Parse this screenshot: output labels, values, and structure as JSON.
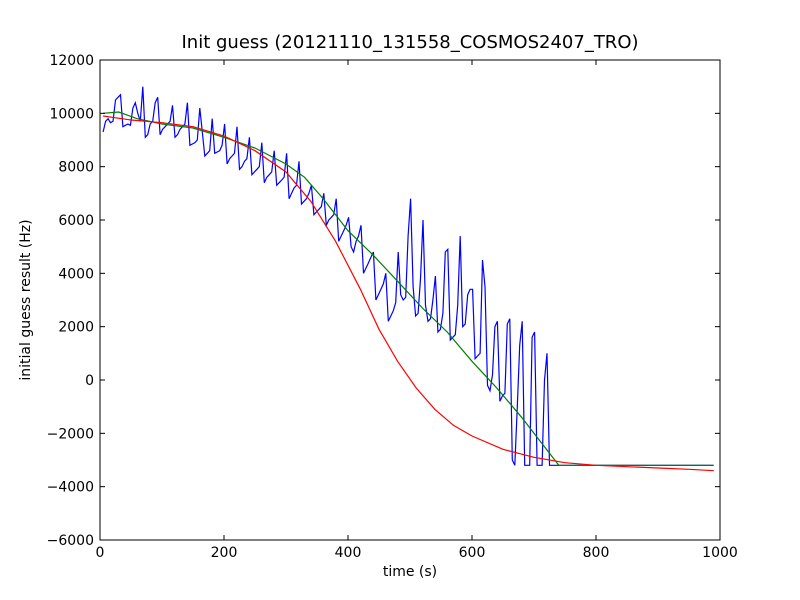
{
  "chart_data": {
    "type": "line",
    "title": "Init guess (20121110_131558_COSMOS2407_TRO)",
    "xlabel": "time (s)",
    "ylabel": "initial guess result (Hz)",
    "xlim": [
      0,
      1000
    ],
    "ylim": [
      -6000,
      12000
    ],
    "xticks": [
      0,
      200,
      400,
      600,
      800,
      1000
    ],
    "yticks": [
      -6000,
      -4000,
      -2000,
      0,
      2000,
      4000,
      6000,
      8000,
      10000,
      12000
    ],
    "grid": false,
    "legend": "none",
    "series": [
      {
        "color": "#0000ff",
        "x": [
          5,
          9,
          13,
          17,
          21,
          25,
          29,
          33,
          37,
          41,
          45,
          49,
          53,
          57,
          61,
          65,
          69,
          73,
          77,
          81,
          85,
          89,
          93,
          97,
          101,
          105,
          109,
          113,
          117,
          121,
          125,
          129,
          133,
          137,
          141,
          145,
          149,
          153,
          157,
          161,
          165,
          169,
          173,
          177,
          181,
          185,
          189,
          193,
          197,
          201,
          205,
          209,
          213,
          217,
          221,
          225,
          229,
          233,
          237,
          241,
          245,
          249,
          253,
          257,
          261,
          265,
          269,
          273,
          277,
          281,
          285,
          289,
          293,
          297,
          301,
          305,
          309,
          313,
          317,
          321,
          325,
          329,
          333,
          337,
          341,
          345,
          349,
          353,
          357,
          361,
          365,
          369,
          373,
          377,
          381,
          385,
          389,
          393,
          397,
          401,
          405,
          409,
          413,
          417,
          421,
          425,
          429,
          433,
          437,
          441,
          445,
          449,
          453,
          457,
          461,
          465,
          469,
          473,
          477,
          481,
          485,
          489,
          493,
          497,
          501,
          505,
          509,
          513,
          517,
          521,
          525,
          529,
          533,
          537,
          541,
          545,
          549,
          553,
          557,
          561,
          565,
          569,
          573,
          577,
          581,
          585,
          589,
          593,
          597,
          601,
          605,
          609,
          613,
          617,
          621,
          625,
          629,
          633,
          637,
          641,
          645,
          649,
          653,
          657,
          661,
          665,
          669,
          673,
          677,
          681,
          685,
          689,
          693,
          697,
          701,
          705,
          709,
          713,
          717,
          721,
          725,
          729,
          733,
          737,
          741,
          745,
          749,
          753,
          757,
          761,
          765,
          769,
          773,
          777,
          781,
          785,
          789,
          793,
          797,
          801,
          805,
          809,
          813,
          817,
          821,
          825,
          829,
          833,
          837,
          841,
          845,
          849,
          853,
          857,
          861,
          865,
          869,
          873,
          877,
          881,
          885,
          889,
          893,
          897,
          901,
          905,
          909,
          913,
          917,
          921,
          925,
          929,
          933,
          937,
          941,
          945,
          949,
          953,
          957,
          961,
          965,
          969,
          973,
          977,
          981,
          985,
          989
        ],
        "y": [
          9300,
          9700,
          9800,
          9650,
          9700,
          10500,
          10600,
          10700,
          9500,
          9550,
          9600,
          9550,
          10200,
          10400,
          10000,
          9700,
          11000,
          9100,
          9200,
          9600,
          9700,
          10400,
          10600,
          9200,
          9400,
          9500,
          9600,
          9700,
          10300,
          9100,
          9200,
          9400,
          9500,
          9600,
          10400,
          8800,
          8850,
          8900,
          9000,
          10200,
          9300,
          8400,
          8500,
          8600,
          9800,
          8500,
          8550,
          8600,
          8800,
          9600,
          8100,
          8300,
          8400,
          8500,
          9500,
          7900,
          8000,
          8200,
          8300,
          9100,
          7700,
          7800,
          7900,
          8000,
          8900,
          7400,
          7600,
          7700,
          7800,
          8600,
          7300,
          7400,
          7500,
          7600,
          8500,
          6800,
          7000,
          7200,
          7300,
          8200,
          6600,
          6700,
          6800,
          7000,
          7300,
          6200,
          6300,
          6400,
          6500,
          7000,
          5800,
          6000,
          6100,
          6200,
          6800,
          5200,
          5400,
          5600,
          5800,
          6100,
          5000,
          4800,
          5200,
          5400,
          5800,
          4000,
          4200,
          4400,
          4600,
          4800,
          3000,
          3200,
          3400,
          3600,
          4000,
          2200,
          2400,
          2600,
          2900,
          4800,
          3200,
          3000,
          3100,
          5400,
          6800,
          3500,
          2400,
          2500,
          3800,
          6000,
          2800,
          2200,
          2300,
          3000,
          3900,
          1800,
          1900,
          2500,
          4800,
          4900,
          1500,
          1600,
          1700,
          2800,
          5400,
          2000,
          2100,
          3200,
          3400,
          3400,
          800,
          900,
          1000,
          4500,
          3500,
          -200,
          -400,
          200,
          2000,
          2200,
          -800,
          -600,
          -500,
          2100,
          2300,
          -3000,
          -3200,
          -1000,
          1300,
          2200,
          -3200,
          -3200,
          -3200,
          1600,
          1800,
          -3200,
          -3200,
          -3200,
          0,
          1000,
          -3200,
          -3200,
          -3200,
          -3200,
          -3200,
          -3200,
          -3200,
          -3200,
          -3200,
          -3200,
          -3200,
          -3200,
          -3200,
          -3200,
          -3200,
          -3200,
          -3200,
          -3200,
          -3200,
          -3200,
          -3200,
          -3200,
          -3200,
          -3200,
          -3200,
          -3200,
          -3200,
          -3200,
          -3200,
          -3200,
          -3200,
          -3200,
          -3200,
          -3200,
          -3200,
          -3200,
          -3200,
          -3200,
          -3200,
          -3200,
          -3200,
          -3200,
          -3200,
          -3200,
          -3200,
          -3200,
          -3200,
          -3200,
          -3200,
          -3200,
          -3200,
          -3200,
          -3200,
          -3200,
          -3200,
          -3200,
          -3200,
          -3200,
          -3200,
          -3200,
          -3200,
          -3200,
          -3200,
          -3200,
          -3200,
          -3200,
          -3200
        ]
      },
      {
        "color": "#008000",
        "x": [
          5,
          30,
          60,
          100,
          150,
          200,
          250,
          300,
          330,
          360,
          400,
          440,
          480,
          520,
          560,
          600,
          640,
          680,
          720,
          740,
          760,
          800,
          850,
          900,
          950,
          990
        ],
        "y": [
          10000,
          10050,
          9800,
          9600,
          9450,
          9100,
          8700,
          8100,
          7600,
          6800,
          5600,
          4700,
          3700,
          2700,
          1800,
          700,
          -300,
          -1400,
          -2600,
          -3200,
          -3200,
          -3200,
          -3200,
          -3200,
          -3200,
          -3200
        ]
      },
      {
        "color": "#ff0000",
        "x": [
          5,
          50,
          100,
          150,
          200,
          250,
          300,
          340,
          380,
          420,
          450,
          480,
          510,
          540,
          570,
          600,
          650,
          700,
          750,
          800,
          850,
          900,
          950,
          990
        ],
        "y": [
          9900,
          9750,
          9650,
          9500,
          9150,
          8600,
          7800,
          6700,
          5200,
          3400,
          1900,
          700,
          -300,
          -1100,
          -1700,
          -2100,
          -2600,
          -2900,
          -3100,
          -3200,
          -3250,
          -3300,
          -3350,
          -3400
        ]
      }
    ]
  }
}
